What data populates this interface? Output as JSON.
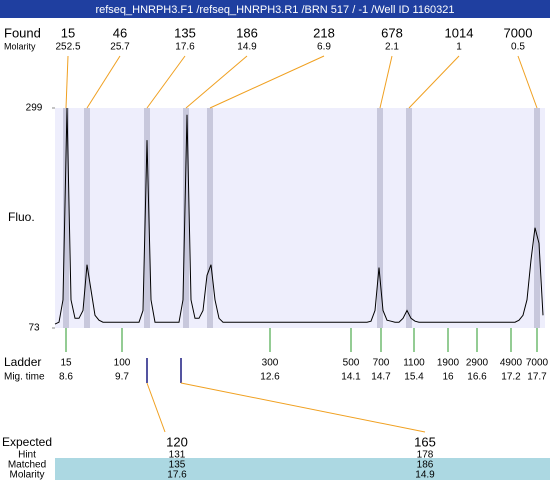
{
  "title_bar": "refseq_HNRPH3.F1 /refseq_HNRPH3.R1 /BRN 517 / -1 /Well ID 1160321",
  "found": {
    "label": "Found",
    "sizes": [
      15,
      46,
      135,
      186,
      218,
      678,
      1014,
      7000
    ],
    "molarity_label": "Molarity",
    "molarity": [
      252.5,
      25.7,
      17.6,
      14.9,
      6.9,
      2.1,
      1,
      0.5
    ]
  },
  "trace": {
    "y_label": "Fluo.",
    "ylim": [
      73,
      299
    ],
    "yticks": [
      73,
      299
    ],
    "values": [
      77,
      79,
      102,
      299,
      102,
      83,
      83,
      91,
      138,
      112,
      86,
      81,
      79,
      79,
      79,
      79,
      79,
      79,
      79,
      79,
      79,
      79,
      91,
      266,
      102,
      79,
      79,
      79,
      79,
      79,
      79,
      79,
      102,
      292,
      102,
      83,
      83,
      91,
      127,
      138,
      102,
      83,
      79,
      79,
      79,
      79,
      79,
      79,
      79,
      79,
      79,
      79,
      79,
      79,
      79,
      79,
      79,
      79,
      79,
      79,
      79,
      79,
      79,
      79,
      79,
      79,
      79,
      79,
      79,
      79,
      79,
      79,
      79,
      79,
      79,
      79,
      79,
      79,
      79,
      80,
      91,
      135,
      91,
      81,
      80,
      79,
      79,
      83,
      91,
      83,
      80,
      79,
      79,
      79,
      79,
      79,
      79,
      79,
      79,
      79,
      79,
      79,
      79,
      79,
      79,
      79,
      79,
      79,
      79,
      79,
      79,
      79,
      79,
      79,
      79,
      79,
      81,
      86,
      102,
      143,
      176,
      160,
      86
    ]
  },
  "ladder": {
    "label": "Ladder",
    "sizes": [
      15,
      100,
      300,
      500,
      700,
      1100,
      1900,
      2900,
      4900,
      7000
    ],
    "time_label": "Mig. time",
    "times": [
      8.6,
      9.7,
      12.6,
      14.1,
      14.7,
      15.4,
      16,
      16.6,
      17.2,
      17.7
    ]
  },
  "expected": {
    "label": "Expected",
    "values": [
      120,
      165
    ],
    "hint_label": "Hint",
    "hint": [
      131,
      178
    ],
    "matched_label": "Matched",
    "matched": [
      135,
      186
    ],
    "molarity_label": "Molarity",
    "molarity": [
      17.6,
      14.9
    ]
  }
}
